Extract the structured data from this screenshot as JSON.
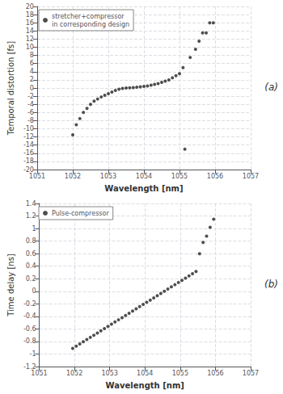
{
  "chart_data": [
    {
      "type": "scatter",
      "xlabel": "Wavelength [nm]",
      "ylabel": "Temporal distortion [fs]",
      "annotations": [
        "(a)"
      ],
      "legend": "upper left",
      "grid": true,
      "xlim": [
        1051,
        1057
      ],
      "ylim": [
        -20,
        20
      ],
      "xticks": [
        1051,
        1052,
        1053,
        1054,
        1055,
        1056,
        1057
      ],
      "yticks": [
        -20,
        -18,
        -16,
        -14,
        -12,
        -10,
        -8,
        -6,
        -4,
        -2,
        0,
        2,
        4,
        6,
        8,
        10,
        12,
        14,
        16,
        18,
        20
      ],
      "x": [
        1052.0,
        1052.1,
        1052.2,
        1052.3,
        1052.4,
        1052.5,
        1052.6,
        1052.7,
        1052.8,
        1052.9,
        1053.0,
        1053.1,
        1053.2,
        1053.3,
        1053.4,
        1053.5,
        1053.6,
        1053.7,
        1053.8,
        1053.9,
        1054.0,
        1054.1,
        1054.2,
        1054.3,
        1054.4,
        1054.5,
        1054.6,
        1054.7,
        1054.8,
        1054.9,
        1055.0,
        1055.1,
        1055.15,
        1055.3,
        1055.45,
        1055.55,
        1055.65,
        1055.75,
        1055.85,
        1055.95
      ],
      "series": [
        {
          "name": "stretcher+compressor\nin corresponding design",
          "color": "#222222",
          "values": [
            -11.5,
            -9.0,
            -7.5,
            -6.0,
            -5.0,
            -4.0,
            -3.2,
            -2.7,
            -2.2,
            -1.8,
            -1.4,
            -1.0,
            -0.6,
            -0.3,
            -0.1,
            0.0,
            0.05,
            0.1,
            0.2,
            0.3,
            0.4,
            0.5,
            0.7,
            0.9,
            1.1,
            1.4,
            1.7,
            2.0,
            2.5,
            3.0,
            3.5,
            5.0,
            -15.0,
            7.5,
            9.5,
            11.5,
            13.5,
            13.5,
            16.0,
            16.0
          ]
        }
      ]
    },
    {
      "type": "scatter",
      "xlabel": "Wavelength [nm]",
      "ylabel": "Time delay [ns]",
      "annotations": [
        "(b)"
      ],
      "legend": "upper left",
      "grid": true,
      "xlim": [
        1051,
        1057
      ],
      "ylim": [
        -1.2,
        1.4
      ],
      "xticks": [
        1051,
        1052,
        1053,
        1054,
        1055,
        1056,
        1057
      ],
      "yticks": [
        -1.2,
        -1.0,
        -0.8,
        -0.6,
        -0.4,
        -0.2,
        0.0,
        0.2,
        0.4,
        0.6,
        0.8,
        1.0,
        1.2,
        1.4
      ],
      "x": [
        1051.95,
        1052.05,
        1052.15,
        1052.25,
        1052.35,
        1052.45,
        1052.55,
        1052.65,
        1052.75,
        1052.85,
        1052.95,
        1053.05,
        1053.15,
        1053.25,
        1053.35,
        1053.45,
        1053.55,
        1053.65,
        1053.75,
        1053.85,
        1053.95,
        1054.05,
        1054.15,
        1054.25,
        1054.35,
        1054.45,
        1054.55,
        1054.65,
        1054.75,
        1054.85,
        1054.95,
        1055.05,
        1055.15,
        1055.25,
        1055.35,
        1055.45,
        1055.55,
        1055.65,
        1055.75,
        1055.85,
        1055.95
      ],
      "series": [
        {
          "name": "Pulse-compressor",
          "color": "#222222",
          "values": [
            -0.91,
            -0.875,
            -0.84,
            -0.805,
            -0.77,
            -0.735,
            -0.7,
            -0.665,
            -0.63,
            -0.595,
            -0.56,
            -0.525,
            -0.49,
            -0.455,
            -0.42,
            -0.385,
            -0.35,
            -0.315,
            -0.28,
            -0.245,
            -0.21,
            -0.175,
            -0.14,
            -0.105,
            -0.07,
            -0.035,
            0.0,
            0.035,
            0.07,
            0.105,
            0.14,
            0.175,
            0.21,
            0.245,
            0.28,
            0.315,
            0.6,
            0.78,
            0.88,
            1.02,
            1.15
          ]
        }
      ]
    }
  ]
}
